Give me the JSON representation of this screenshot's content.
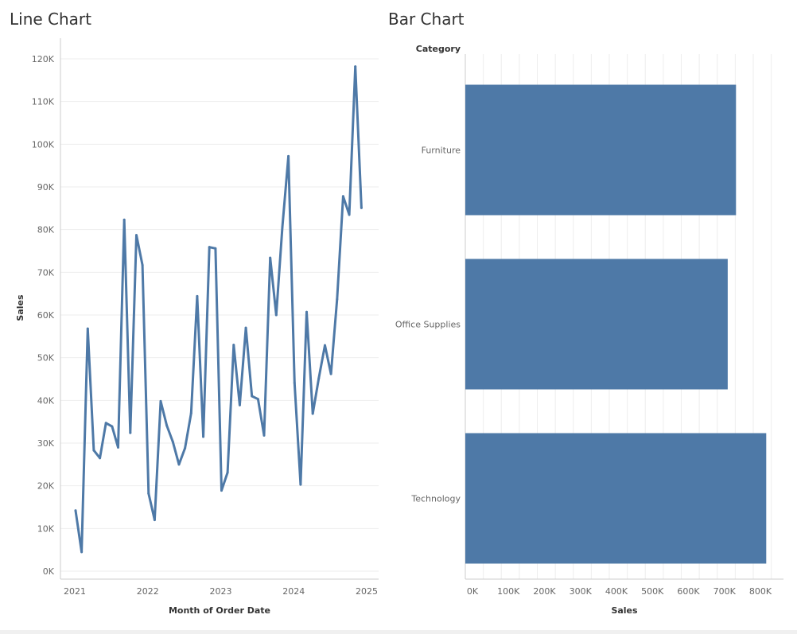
{
  "colors": {
    "mark": "#4e79a7",
    "grid": "#eeeeee",
    "axis": "#cccccc"
  },
  "chart_data": [
    {
      "type": "line",
      "title": "Line Chart",
      "xlabel": "Month of Order Date",
      "ylabel": "Sales",
      "x_ticks": [
        "2021",
        "2022",
        "2023",
        "2024",
        "2025"
      ],
      "y_ticks": [
        "0K",
        "10K",
        "20K",
        "30K",
        "40K",
        "50K",
        "60K",
        "70K",
        "80K",
        "90K",
        "100K",
        "110K",
        "120K"
      ],
      "ylim": [
        0,
        120000
      ],
      "x_start": "2021-01",
      "series": [
        {
          "name": "Sales",
          "values": [
            14200,
            4500,
            56800,
            28300,
            26500,
            34700,
            33900,
            29000,
            82300,
            32400,
            78700,
            71700,
            18200,
            12000,
            39800,
            34100,
            30300,
            25000,
            28800,
            37000,
            64400,
            31500,
            75900,
            75600,
            18900,
            23100,
            53000,
            38900,
            57000,
            41000,
            40300,
            31800,
            73400,
            60000,
            80600,
            97200,
            44100,
            20300,
            60700,
            36900,
            45200,
            52900,
            46200,
            63700,
            87800,
            83500,
            118200,
            85100
          ]
        }
      ]
    },
    {
      "type": "bar",
      "orientation": "horizontal",
      "title": "Bar Chart",
      "category_header": "Category",
      "xlabel": "Sales",
      "categories": [
        "Furniture",
        "Office Supplies",
        "Technology"
      ],
      "values": [
        752000,
        729000,
        836000
      ],
      "x_ticks": [
        "0K",
        "100K",
        "200K",
        "300K",
        "400K",
        "500K",
        "600K",
        "700K",
        "800K"
      ],
      "xlim": [
        0,
        820000
      ]
    }
  ]
}
